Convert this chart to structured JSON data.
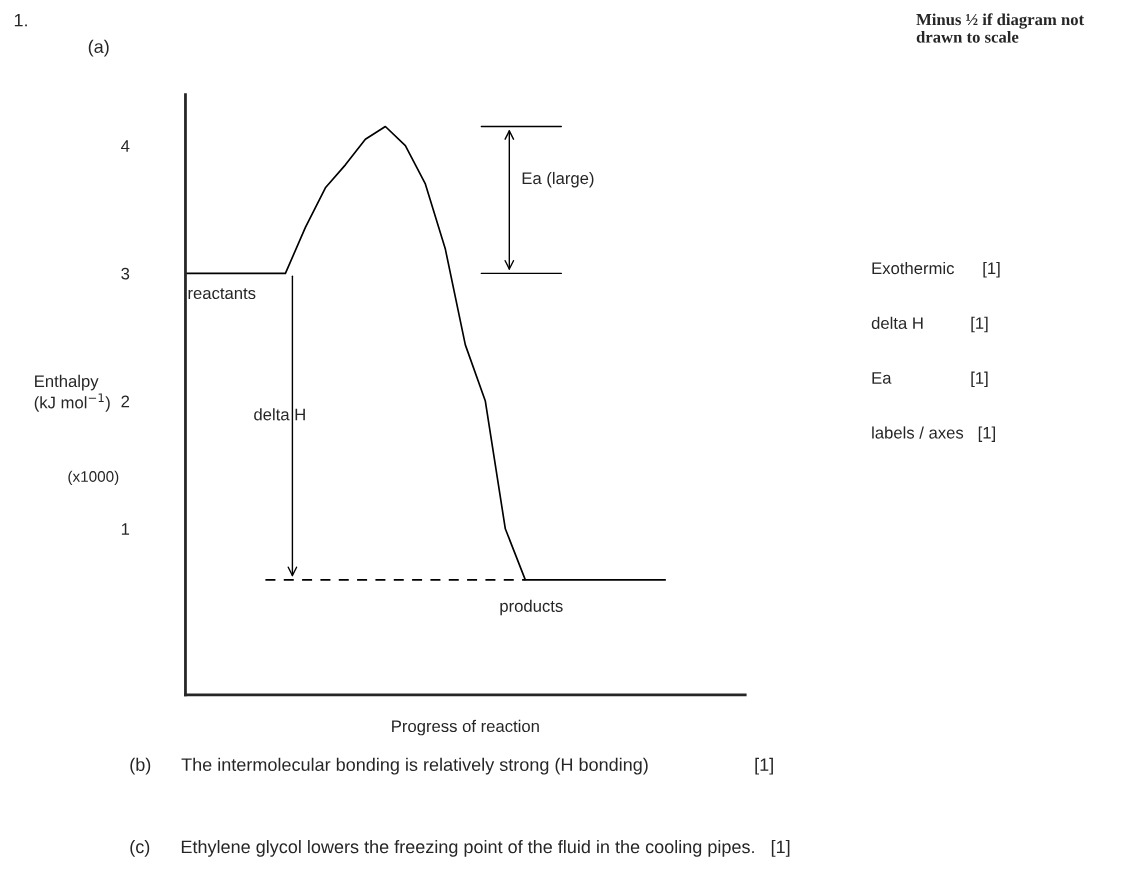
{
  "chart_data": {
    "type": "line",
    "title": "1.",
    "subtitle": "(a)",
    "xlabel": "Progress of reaction",
    "ylabel": "Enthalpy\n(kJ mol$^{−1}$)",
    "categories": [
      null,
      null,
      null,
      null,
      null,
      null,
      null,
      null,
      null,
      null,
      null,
      null,
      null,
      null,
      null,
      null,
      null,
      null,
      null,
      null,
      null,
      null,
      null,
      null,
      null,
      null,
      null,
      null,
      null
    ],
    "series": [
      {
        "color": "#000000",
        "line_style": "solid",
        "values": [
          3,
          3,
          3,
          3,
          3,
          3,
          3.36,
          3.67,
          3.85,
          4.05,
          4.15,
          4.0,
          3.7,
          3.19,
          2.44,
          2.0,
          1.0,
          0.6,
          0.6,
          0.6,
          0.6,
          0.6,
          0.6,
          0.6,
          0.6,
          null,
          null,
          null,
          null
        ]
      },
      {
        "color": "#000000",
        "line_style": "dashed",
        "values": [
          null,
          null,
          null,
          null,
          0.6,
          0.6,
          0.6,
          0.6,
          0.6,
          0.6,
          0.6,
          0.6,
          0.6,
          0.6,
          0.6,
          0.6,
          0.6,
          0.6,
          null,
          null,
          null,
          null,
          null,
          null,
          null,
          null,
          null,
          null,
          null
        ]
      }
    ],
    "ylim": [
      -0.3,
      4.4
    ],
    "yticks": [
      1,
      2,
      3,
      4
    ],
    "tick_labels": "y",
    "grid": false,
    "legend": false,
    "marker": "none",
    "annotations": [
      "reactants",
      "products",
      "delta H",
      "Ea (large)",
      "(x1000)",
      "Minus ½ if diagram not drawn to scale",
      "Exothermic      [1]",
      "delta H          [1]",
      "Ea                 [1]",
      "labels / axes   [1]",
      "(b)      The intermolecular bonding is relatively strong (H bonding)                     [1]",
      "(c)      Ethylene glycol lowers the freezing point of the fluid in the cooling pipes.   [1]"
    ]
  }
}
